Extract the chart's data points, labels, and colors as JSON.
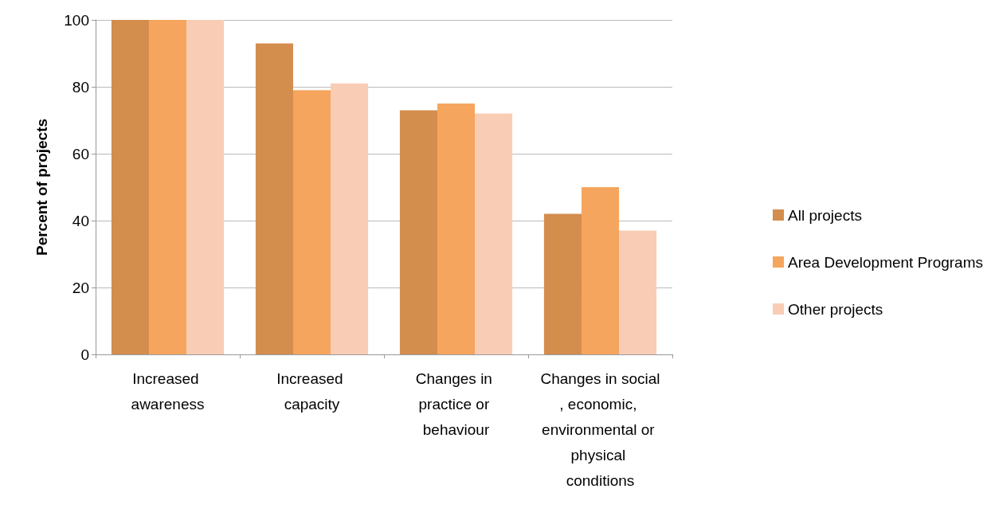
{
  "chart_data": {
    "type": "bar",
    "ylabel": "Percent of projects",
    "categories": [
      "Increased awareness",
      "Increased capacity",
      "Changes in practice or behaviour",
      "Changes in social, economic, environmental or physical conditions"
    ],
    "series": [
      {
        "name": "All projects",
        "color": "#d38d4d",
        "values": [
          100,
          93,
          73,
          42
        ]
      },
      {
        "name": "Area Development Programs",
        "color": "#f5a55e",
        "values": [
          100,
          79,
          75,
          50
        ]
      },
      {
        "name": "Other projects",
        "color": "#f9cdb5",
        "values": [
          100,
          81,
          72,
          37
        ]
      }
    ],
    "ylim": [
      0,
      100
    ],
    "yticks": [
      0,
      20,
      40,
      60,
      80,
      100
    ],
    "grid": "y",
    "legend": "right"
  }
}
